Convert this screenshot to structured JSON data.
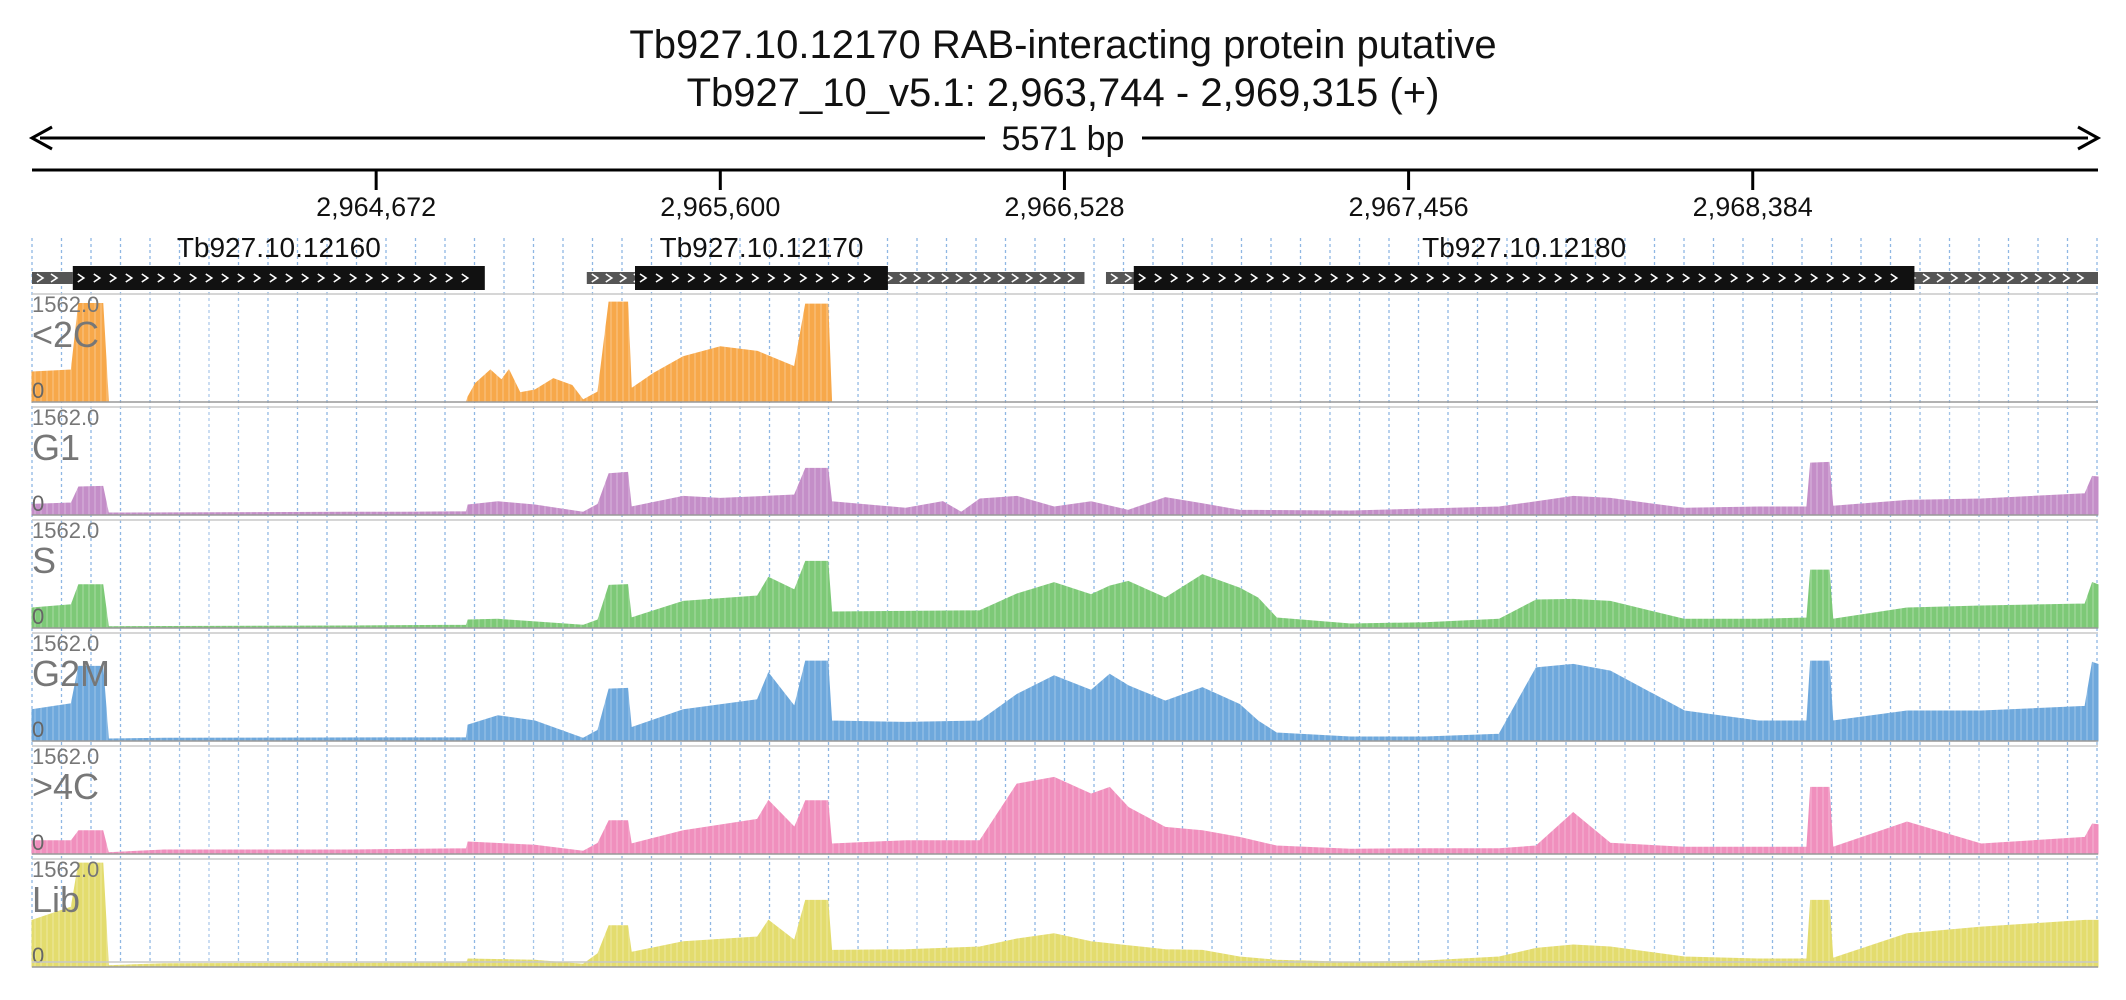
{
  "chart_data": {
    "type": "area",
    "title": "Tb927.10.12170  RAB-interacting protein  putative",
    "subtitle": "Tb927_10_v5.1: 2,963,744 - 2,969,315 (+)",
    "span_label": "5571 bp",
    "xlim": [
      2963744,
      2969315
    ],
    "ticks": [
      {
        "pos": 2964672,
        "label": "2,964,672"
      },
      {
        "pos": 2965600,
        "label": "2,965,600"
      },
      {
        "pos": 2966528,
        "label": "2,966,528"
      },
      {
        "pos": 2967456,
        "label": "2,967,456"
      },
      {
        "pos": 2968384,
        "label": "2,968,384"
      }
    ],
    "genes": [
      {
        "name": "Tb927.10.12160",
        "utr": [
          2963744,
          2963854
        ],
        "cds": [
          2963854,
          2964965
        ]
      },
      {
        "name": "Tb927.10.12170",
        "utr": [
          2965240,
          2966582
        ],
        "cds": [
          2965370,
          2966052
        ]
      },
      {
        "name": "Tb927.10.12180",
        "utr": [
          2966640,
          2969315
        ],
        "cds": [
          2966715,
          2968820
        ]
      }
    ],
    "grid": true,
    "ylim": [
      0,
      1562.0
    ],
    "tracks": [
      {
        "name": "<2C",
        "color": "#f7a84a",
        "max_label": "1562.0",
        "min_label": "0",
        "points": [
          [
            2963744,
            450
          ],
          [
            2963850,
            480
          ],
          [
            2963870,
            1480
          ],
          [
            2963935,
            1480
          ],
          [
            2963950,
            0
          ],
          [
            2964915,
            0
          ],
          [
            2964920,
            80
          ],
          [
            2964940,
            280
          ],
          [
            2964980,
            480
          ],
          [
            2965010,
            330
          ],
          [
            2965030,
            480
          ],
          [
            2965060,
            140
          ],
          [
            2965100,
            180
          ],
          [
            2965150,
            350
          ],
          [
            2965200,
            250
          ],
          [
            2965230,
            30
          ],
          [
            2965270,
            150
          ],
          [
            2965300,
            1500
          ],
          [
            2965350,
            1500
          ],
          [
            2965360,
            200
          ],
          [
            2965420,
            430
          ],
          [
            2965500,
            680
          ],
          [
            2965600,
            830
          ],
          [
            2965700,
            760
          ],
          [
            2965800,
            530
          ],
          [
            2965830,
            1470
          ],
          [
            2965890,
            1470
          ],
          [
            2965900,
            0
          ],
          [
            2969315,
            0
          ]
        ]
      },
      {
        "name": "G1",
        "color": "#c48ec8",
        "max_label": "1562.0",
        "min_label": "0",
        "points": [
          [
            2963744,
            160
          ],
          [
            2963850,
            180
          ],
          [
            2963870,
            420
          ],
          [
            2963935,
            430
          ],
          [
            2963950,
            30
          ],
          [
            2964600,
            40
          ],
          [
            2964750,
            40
          ],
          [
            2964915,
            50
          ],
          [
            2964920,
            150
          ],
          [
            2965000,
            200
          ],
          [
            2965100,
            150
          ],
          [
            2965230,
            40
          ],
          [
            2965270,
            160
          ],
          [
            2965300,
            620
          ],
          [
            2965350,
            640
          ],
          [
            2965360,
            120
          ],
          [
            2965500,
            280
          ],
          [
            2965600,
            250
          ],
          [
            2965800,
            300
          ],
          [
            2965830,
            700
          ],
          [
            2965890,
            700
          ],
          [
            2965900,
            200
          ],
          [
            2966100,
            100
          ],
          [
            2966200,
            200
          ],
          [
            2966250,
            40
          ],
          [
            2966300,
            240
          ],
          [
            2966400,
            280
          ],
          [
            2966500,
            120
          ],
          [
            2966600,
            200
          ],
          [
            2966700,
            70
          ],
          [
            2966800,
            260
          ],
          [
            2966900,
            170
          ],
          [
            2967000,
            70
          ],
          [
            2967300,
            60
          ],
          [
            2967500,
            90
          ],
          [
            2967700,
            120
          ],
          [
            2967800,
            200
          ],
          [
            2967900,
            280
          ],
          [
            2968000,
            250
          ],
          [
            2968200,
            100
          ],
          [
            2968400,
            120
          ],
          [
            2968530,
            120
          ],
          [
            2968540,
            780
          ],
          [
            2968590,
            790
          ],
          [
            2968600,
            130
          ],
          [
            2968800,
            220
          ],
          [
            2969000,
            240
          ],
          [
            2969280,
            320
          ],
          [
            2969300,
            580
          ],
          [
            2969315,
            570
          ]
        ]
      },
      {
        "name": "S",
        "color": "#7dc977",
        "max_label": "1562.0",
        "min_label": "0",
        "points": [
          [
            2963744,
            300
          ],
          [
            2963850,
            350
          ],
          [
            2963870,
            650
          ],
          [
            2963935,
            650
          ],
          [
            2963950,
            20
          ],
          [
            2964600,
            30
          ],
          [
            2964915,
            40
          ],
          [
            2964920,
            120
          ],
          [
            2965000,
            130
          ],
          [
            2965230,
            40
          ],
          [
            2965270,
            120
          ],
          [
            2965300,
            640
          ],
          [
            2965350,
            650
          ],
          [
            2965360,
            150
          ],
          [
            2965500,
            400
          ],
          [
            2965700,
            480
          ],
          [
            2965730,
            760
          ],
          [
            2965800,
            570
          ],
          [
            2965830,
            1000
          ],
          [
            2965890,
            1000
          ],
          [
            2965900,
            240
          ],
          [
            2966100,
            250
          ],
          [
            2966300,
            260
          ],
          [
            2966400,
            510
          ],
          [
            2966500,
            680
          ],
          [
            2966600,
            500
          ],
          [
            2966650,
            630
          ],
          [
            2966700,
            700
          ],
          [
            2966800,
            450
          ],
          [
            2966900,
            800
          ],
          [
            2967000,
            600
          ],
          [
            2967050,
            450
          ],
          [
            2967100,
            150
          ],
          [
            2967300,
            60
          ],
          [
            2967500,
            80
          ],
          [
            2967700,
            130
          ],
          [
            2967800,
            420
          ],
          [
            2967900,
            430
          ],
          [
            2968000,
            400
          ],
          [
            2968200,
            130
          ],
          [
            2968400,
            130
          ],
          [
            2968530,
            150
          ],
          [
            2968540,
            870
          ],
          [
            2968590,
            870
          ],
          [
            2968600,
            130
          ],
          [
            2968800,
            300
          ],
          [
            2969000,
            330
          ],
          [
            2969280,
            360
          ],
          [
            2969300,
            680
          ],
          [
            2969315,
            650
          ]
        ]
      },
      {
        "name": "G2M",
        "color": "#6ea8dc",
        "max_label": "1562.0",
        "min_label": "0",
        "points": [
          [
            2963744,
            470
          ],
          [
            2963850,
            560
          ],
          [
            2963870,
            1120
          ],
          [
            2963935,
            1120
          ],
          [
            2963950,
            30
          ],
          [
            2964100,
            40
          ],
          [
            2964915,
            50
          ],
          [
            2964920,
            240
          ],
          [
            2965000,
            380
          ],
          [
            2965100,
            300
          ],
          [
            2965230,
            40
          ],
          [
            2965270,
            160
          ],
          [
            2965300,
            780
          ],
          [
            2965350,
            790
          ],
          [
            2965360,
            200
          ],
          [
            2965500,
            470
          ],
          [
            2965700,
            620
          ],
          [
            2965730,
            1020
          ],
          [
            2965800,
            520
          ],
          [
            2965830,
            1200
          ],
          [
            2965890,
            1200
          ],
          [
            2965900,
            300
          ],
          [
            2966100,
            280
          ],
          [
            2966300,
            300
          ],
          [
            2966400,
            700
          ],
          [
            2966500,
            980
          ],
          [
            2966600,
            760
          ],
          [
            2966650,
            1000
          ],
          [
            2966700,
            830
          ],
          [
            2966800,
            600
          ],
          [
            2966900,
            800
          ],
          [
            2967000,
            550
          ],
          [
            2967050,
            300
          ],
          [
            2967100,
            120
          ],
          [
            2967300,
            60
          ],
          [
            2967500,
            60
          ],
          [
            2967700,
            100
          ],
          [
            2967800,
            1100
          ],
          [
            2967900,
            1150
          ],
          [
            2968000,
            1050
          ],
          [
            2968200,
            450
          ],
          [
            2968400,
            300
          ],
          [
            2968530,
            300
          ],
          [
            2968540,
            1200
          ],
          [
            2968590,
            1200
          ],
          [
            2968600,
            300
          ],
          [
            2968800,
            450
          ],
          [
            2969000,
            450
          ],
          [
            2969280,
            520
          ],
          [
            2969300,
            1180
          ],
          [
            2969315,
            1150
          ]
        ]
      },
      {
        "name": ">4C",
        "color": "#f08fbd",
        "max_label": "1562.0",
        "min_label": "0",
        "points": [
          [
            2963744,
            200
          ],
          [
            2963850,
            200
          ],
          [
            2963870,
            350
          ],
          [
            2963935,
            350
          ],
          [
            2963950,
            20
          ],
          [
            2964100,
            60
          ],
          [
            2964600,
            60
          ],
          [
            2964915,
            80
          ],
          [
            2964920,
            180
          ],
          [
            2965100,
            130
          ],
          [
            2965230,
            40
          ],
          [
            2965270,
            160
          ],
          [
            2965300,
            500
          ],
          [
            2965350,
            500
          ],
          [
            2965360,
            150
          ],
          [
            2965500,
            350
          ],
          [
            2965700,
            520
          ],
          [
            2965730,
            800
          ],
          [
            2965800,
            400
          ],
          [
            2965830,
            800
          ],
          [
            2965890,
            800
          ],
          [
            2965900,
            150
          ],
          [
            2966100,
            200
          ],
          [
            2966300,
            200
          ],
          [
            2966400,
            1050
          ],
          [
            2966500,
            1150
          ],
          [
            2966600,
            900
          ],
          [
            2966650,
            1000
          ],
          [
            2966700,
            700
          ],
          [
            2966800,
            400
          ],
          [
            2966900,
            350
          ],
          [
            2967000,
            250
          ],
          [
            2967100,
            120
          ],
          [
            2967300,
            70
          ],
          [
            2967500,
            80
          ],
          [
            2967700,
            80
          ],
          [
            2967800,
            120
          ],
          [
            2967900,
            620
          ],
          [
            2968000,
            160
          ],
          [
            2968200,
            100
          ],
          [
            2968400,
            100
          ],
          [
            2968530,
            100
          ],
          [
            2968540,
            1000
          ],
          [
            2968590,
            1000
          ],
          [
            2968600,
            100
          ],
          [
            2968800,
            480
          ],
          [
            2969000,
            150
          ],
          [
            2969280,
            250
          ],
          [
            2969300,
            450
          ],
          [
            2969315,
            440
          ]
        ]
      },
      {
        "name": "Lib",
        "color": "#e3dc6e",
        "max_label": "1562.0",
        "min_label": "0",
        "points": [
          [
            2963744,
            700
          ],
          [
            2963850,
            900
          ],
          [
            2963870,
            1560
          ],
          [
            2963935,
            1560
          ],
          [
            2963950,
            20
          ],
          [
            2964100,
            50
          ],
          [
            2964915,
            60
          ],
          [
            2964920,
            120
          ],
          [
            2965100,
            100
          ],
          [
            2965230,
            40
          ],
          [
            2965270,
            200
          ],
          [
            2965300,
            620
          ],
          [
            2965350,
            620
          ],
          [
            2965360,
            220
          ],
          [
            2965500,
            380
          ],
          [
            2965700,
            450
          ],
          [
            2965730,
            700
          ],
          [
            2965800,
            400
          ],
          [
            2965830,
            1000
          ],
          [
            2965890,
            1000
          ],
          [
            2965900,
            250
          ],
          [
            2966100,
            260
          ],
          [
            2966300,
            300
          ],
          [
            2966400,
            420
          ],
          [
            2966500,
            500
          ],
          [
            2966600,
            380
          ],
          [
            2966700,
            320
          ],
          [
            2966800,
            260
          ],
          [
            2966900,
            250
          ],
          [
            2967000,
            150
          ],
          [
            2967100,
            100
          ],
          [
            2967300,
            70
          ],
          [
            2967500,
            90
          ],
          [
            2967700,
            150
          ],
          [
            2967800,
            280
          ],
          [
            2967900,
            330
          ],
          [
            2968000,
            300
          ],
          [
            2968200,
            150
          ],
          [
            2968400,
            120
          ],
          [
            2968530,
            120
          ],
          [
            2968540,
            1000
          ],
          [
            2968590,
            1000
          ],
          [
            2968600,
            130
          ],
          [
            2968800,
            500
          ],
          [
            2969000,
            600
          ],
          [
            2969280,
            700
          ],
          [
            2969300,
            700
          ],
          [
            2969315,
            700
          ]
        ]
      }
    ]
  }
}
